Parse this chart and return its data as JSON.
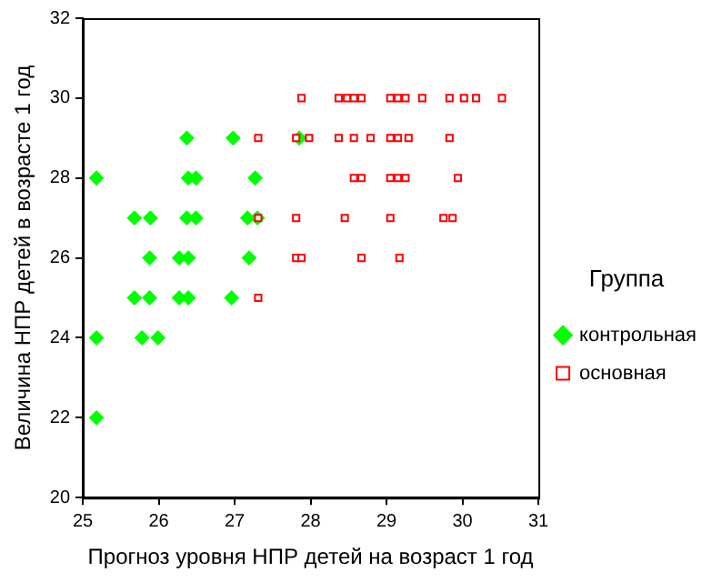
{
  "chart_data": {
    "type": "scatter",
    "xlabel": "Прогноз уровня НПР детей на возраст 1 год",
    "ylabel": "Величина НПР детей в возрасте 1 год",
    "legend_title": "Группа",
    "legend": "right",
    "grid": false,
    "xlim": [
      25,
      31
    ],
    "xticks": [
      25,
      26,
      27,
      28,
      29,
      30,
      31
    ],
    "ylim": [
      20,
      32
    ],
    "yticks": [
      20,
      22,
      24,
      26,
      28,
      30,
      32
    ],
    "series": [
      {
        "name": "контрольная",
        "color": "#00ff00",
        "marker": "diamond",
        "x": [
          25.18,
          26.39,
          26.49,
          27.27,
          25.18,
          25.78,
          25.99,
          25.18,
          25.68,
          25.89,
          26.37,
          26.49,
          27.17,
          27.3,
          26.37,
          26.98,
          27.85,
          25.88,
          26.27,
          26.39,
          27.19,
          25.68,
          25.88,
          26.27,
          26.39,
          26.96
        ],
        "values": [
          28,
          28,
          28,
          28,
          24,
          24,
          24,
          22,
          27,
          27,
          27,
          27,
          27,
          27,
          29,
          29,
          29,
          26,
          26,
          26,
          26,
          25,
          25,
          25,
          25,
          25
        ]
      },
      {
        "name": "основная",
        "color": "#ff0000",
        "marker": "square",
        "x": [
          27.31,
          27.81,
          27.31,
          27.81,
          27.81,
          27.31,
          27.88,
          28.37,
          28.48,
          28.57,
          28.67,
          29.05,
          29.15,
          29.25,
          29.47,
          29.83,
          30.02,
          30.18,
          30.52,
          27.98,
          28.37,
          28.57,
          28.79,
          29.05,
          29.15,
          29.29,
          29.83,
          28.57,
          28.67,
          29.05,
          29.15,
          29.25,
          29.94,
          28.45,
          29.05,
          29.75,
          29.87,
          27.88,
          28.67,
          29.17
        ],
        "values": [
          29,
          29,
          27,
          27,
          26,
          25,
          30,
          30,
          30,
          30,
          30,
          30,
          30,
          30,
          30,
          30,
          30,
          30,
          30,
          29,
          29,
          29,
          29,
          29,
          29,
          29,
          29,
          28,
          28,
          28,
          28,
          28,
          28,
          27,
          27,
          27,
          27,
          26,
          26,
          26
        ]
      }
    ]
  }
}
